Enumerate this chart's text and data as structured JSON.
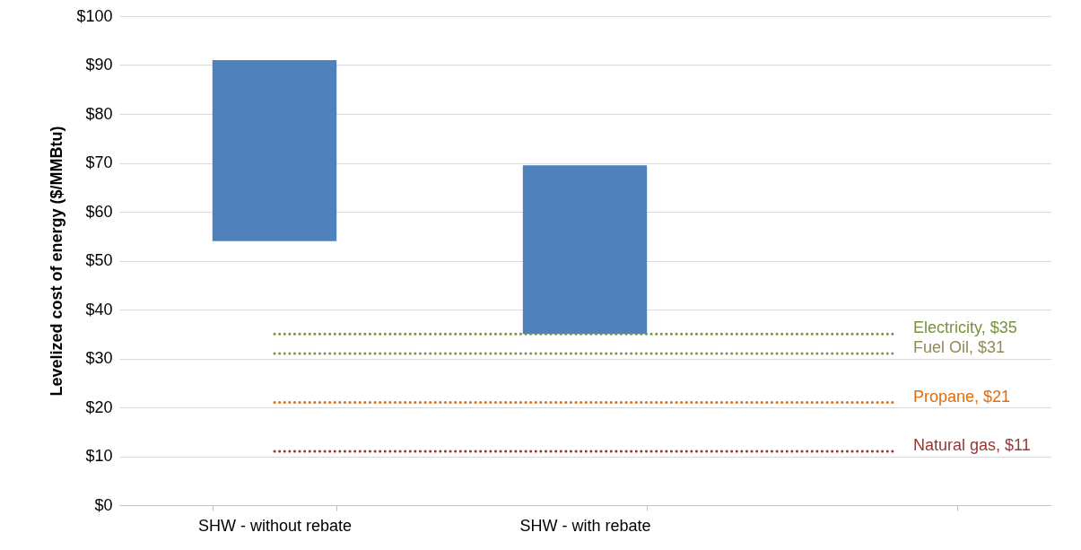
{
  "chart_data": {
    "type": "bar",
    "ylabel": "Levelized cost of energy ($/MMBtu)",
    "categories": [
      "SHW - without rebate",
      "SHW - with rebate",
      null
    ],
    "series": [
      {
        "color": "#4f81bd",
        "values": [
          37,
          34.5,
          null
        ],
        "base": [
          54,
          35,
          null
        ]
      },
      {
        "type": "line",
        "name": "Electricity, $35",
        "color": "#77933c",
        "line_style": "dotted",
        "values": [
          35,
          35,
          35
        ]
      },
      {
        "type": "line",
        "name": "Fuel Oil, $31",
        "color": "#948a54",
        "line_style": "dotted",
        "values": [
          31,
          31,
          31
        ]
      },
      {
        "type": "line",
        "name": "Propane, $21",
        "color": "#e46c0a",
        "line_style": "dotted",
        "values": [
          21,
          21,
          21
        ]
      },
      {
        "type": "line",
        "name": "Natural gas, $11",
        "color": "#953735",
        "line_style": "dotted",
        "values": [
          11,
          11,
          11
        ]
      }
    ],
    "ylim": [
      0,
      100
    ],
    "yticks": [
      {
        "value": 0,
        "label": "$0"
      },
      {
        "value": 10,
        "label": "$10"
      },
      {
        "value": 20,
        "label": "$20"
      },
      {
        "value": 30,
        "label": "$30"
      },
      {
        "value": 40,
        "label": "$40"
      },
      {
        "value": 50,
        "label": "$50"
      },
      {
        "value": 60,
        "label": "$60"
      },
      {
        "value": 70,
        "label": "$70"
      },
      {
        "value": 80,
        "label": "$80"
      },
      {
        "value": 90,
        "label": "$90"
      },
      {
        "value": 100,
        "label": "$100"
      }
    ],
    "grid": "y"
  }
}
